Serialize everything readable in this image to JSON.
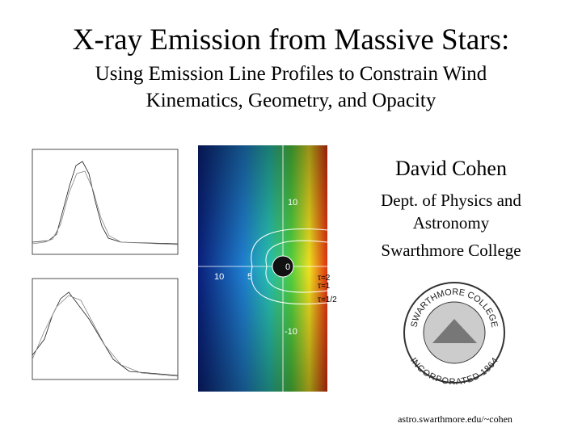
{
  "header": {
    "title": "X-ray Emission from Massive Stars:",
    "subtitle_lines": [
      "Using Emission Line Profiles to Constrain Wind",
      "Kinematics, Geometry, and Opacity"
    ]
  },
  "author": {
    "name": "David Cohen",
    "affiliation_lines": [
      "Dept. of Physics and",
      "Astronomy",
      "Swarthmore College"
    ],
    "url": "astro.swarthmore.edu/~cohen"
  },
  "wind_map": {
    "labels": [
      "10",
      "10",
      "5",
      "0",
      "-10",
      "τ=2",
      "τ=1",
      "τ=1/2"
    ]
  },
  "seal": {
    "top": "SWARTHMORE COLLEGE",
    "bottom": "INCORPORATED 1864"
  }
}
